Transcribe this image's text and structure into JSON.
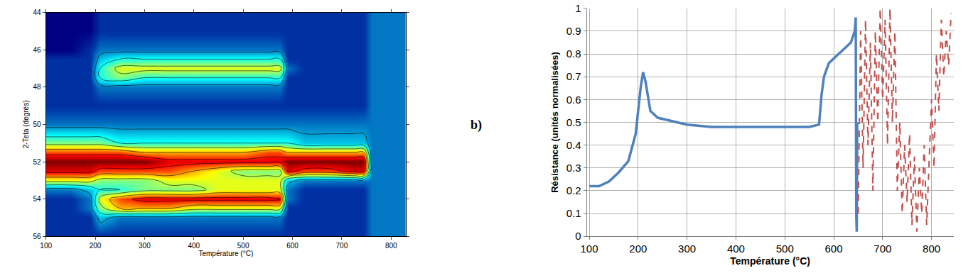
{
  "chart_data": [
    {
      "type": "heatmap",
      "x_label": "Température (°C)",
      "y_label": "2-Teta (degrés)",
      "x": [
        100,
        150,
        190,
        210,
        250,
        300,
        350,
        400,
        450,
        500,
        550,
        575,
        590,
        625,
        675,
        725,
        745,
        760,
        800,
        830
      ],
      "y": [
        44,
        45,
        46,
        46.5,
        47,
        47.5,
        48,
        49,
        50,
        51,
        51.5,
        52,
        52.5,
        53,
        53.5,
        54,
        54.5,
        55,
        56
      ],
      "z": [
        [
          0,
          0,
          0,
          1,
          1,
          1,
          1,
          1,
          1,
          1,
          1,
          1,
          1,
          1,
          1,
          1,
          1,
          2,
          2,
          2
        ],
        [
          0,
          0,
          0,
          1,
          1,
          1,
          1,
          1,
          1,
          1,
          1,
          1,
          1,
          1,
          1,
          1,
          1,
          2,
          2,
          2
        ],
        [
          0,
          0,
          1,
          2,
          2,
          2,
          2,
          2,
          2,
          2,
          2,
          2,
          1,
          1,
          1,
          1,
          1,
          2,
          2,
          2
        ],
        [
          1,
          1,
          1,
          3,
          4,
          4,
          4,
          4,
          4,
          4,
          4,
          4,
          1,
          1,
          1,
          1,
          1,
          2,
          2,
          2
        ],
        [
          1,
          1,
          1,
          4,
          6,
          6,
          6,
          6,
          6,
          6,
          6,
          6,
          2,
          1,
          1,
          1,
          1,
          2,
          2,
          2
        ],
        [
          1,
          1,
          1,
          4,
          5,
          4,
          4,
          4,
          4,
          4,
          4,
          4,
          1,
          1,
          1,
          1,
          1,
          2,
          2,
          2
        ],
        [
          1,
          1,
          1,
          2,
          2,
          2,
          2,
          2,
          2,
          2,
          2,
          2,
          1,
          1,
          1,
          1,
          1,
          2,
          2,
          2
        ],
        [
          1,
          1,
          1,
          1,
          1,
          1,
          1,
          1,
          1,
          1,
          1,
          1,
          1,
          1,
          1,
          1,
          1,
          2,
          2,
          2
        ],
        [
          2,
          2,
          2,
          2,
          2,
          2,
          2,
          2,
          2,
          2,
          2,
          2,
          2,
          2,
          2,
          2,
          2,
          2,
          2,
          2
        ],
        [
          5,
          5,
          5,
          5,
          4,
          4,
          4,
          4,
          4,
          4,
          4,
          4,
          4,
          3,
          3,
          3,
          3,
          2,
          2,
          2
        ],
        [
          8,
          8,
          8,
          8,
          8,
          7,
          7,
          7,
          7,
          7,
          8,
          8,
          7,
          7,
          7,
          7,
          7,
          2,
          2,
          2
        ],
        [
          10,
          10,
          10,
          10,
          10,
          10,
          9,
          9,
          9,
          9,
          9,
          9,
          10,
          10,
          10,
          10,
          10,
          2,
          2,
          2
        ],
        [
          9,
          9,
          9,
          8,
          8,
          8,
          8,
          7,
          6,
          5,
          5,
          5,
          9,
          8,
          8,
          9,
          9,
          2,
          2,
          2
        ],
        [
          6,
          6,
          6,
          5,
          5,
          5,
          6,
          6,
          6,
          6,
          6,
          6,
          3,
          2,
          2,
          2,
          2,
          2,
          2,
          2
        ],
        [
          2,
          2,
          3,
          4,
          4,
          5,
          5,
          5,
          6,
          6,
          6,
          6,
          2,
          1,
          1,
          1,
          1,
          2,
          2,
          2
        ],
        [
          1,
          1,
          2,
          6,
          8,
          9,
          9,
          9,
          9,
          9,
          9,
          9,
          2,
          1,
          1,
          1,
          1,
          2,
          2,
          2
        ],
        [
          1,
          1,
          2,
          5,
          7,
          7,
          7,
          6,
          6,
          6,
          6,
          6,
          1,
          1,
          1,
          1,
          1,
          2,
          2,
          2
        ],
        [
          1,
          1,
          1,
          3,
          2,
          2,
          2,
          2,
          2,
          2,
          2,
          2,
          1,
          1,
          1,
          1,
          1,
          2,
          2,
          2
        ],
        [
          1,
          1,
          1,
          1,
          1,
          1,
          1,
          1,
          1,
          1,
          1,
          1,
          1,
          1,
          1,
          1,
          1,
          2,
          2,
          2
        ]
      ],
      "zlim": [
        0,
        10
      ],
      "xlim": [
        100,
        830
      ],
      "ylim": [
        56,
        44
      ],
      "xticks": [
        100,
        200,
        300,
        400,
        500,
        600,
        700,
        800
      ],
      "yticks": [
        44,
        46,
        48,
        50,
        52,
        54,
        56
      ]
    },
    {
      "type": "line",
      "annotation": "b)",
      "x_label": "Température (°C)",
      "y_label": "Résistance (unités normalisées)",
      "series": [
        {
          "color": "#4f81bd",
          "line_style": "solid",
          "x": [
            100,
            120,
            140,
            160,
            180,
            195,
            205,
            210,
            215,
            225,
            240,
            260,
            300,
            350,
            400,
            450,
            500,
            550,
            570,
            575,
            580,
            590,
            600,
            620,
            635,
            643,
            645,
            646,
            647,
            648
          ],
          "values": [
            0.22,
            0.22,
            0.24,
            0.28,
            0.33,
            0.45,
            0.65,
            0.72,
            0.68,
            0.55,
            0.52,
            0.51,
            0.49,
            0.48,
            0.48,
            0.48,
            0.48,
            0.48,
            0.49,
            0.62,
            0.7,
            0.76,
            0.78,
            0.82,
            0.85,
            0.9,
            0.96,
            0.1,
            0.02,
            0.5
          ]
        },
        {
          "color": "#c0504d",
          "line_style": "dashed",
          "x": [
            650,
            655,
            660,
            665,
            670,
            675,
            680,
            685,
            690,
            695,
            700,
            705,
            710,
            715,
            720,
            725,
            730,
            735,
            740,
            745,
            750,
            755,
            760,
            765,
            770,
            775,
            780,
            785,
            790,
            795,
            800,
            805,
            810,
            815,
            820,
            825,
            830,
            835,
            840
          ],
          "values": [
            0.1,
            0.9,
            0.3,
            0.95,
            0.4,
            0.85,
            0.2,
            0.9,
            0.5,
            1.0,
            0.6,
            0.95,
            0.4,
            1.0,
            0.5,
            0.9,
            0.2,
            0.5,
            0.1,
            0.4,
            0.15,
            0.45,
            0.05,
            0.35,
            0.02,
            0.3,
            0.1,
            0.4,
            0.05,
            0.35,
            0.6,
            0.3,
            0.8,
            0.55,
            0.95,
            0.7,
            0.9,
            0.75,
            0.98
          ]
        }
      ],
      "xlim": [
        95,
        845
      ],
      "ylim": [
        0,
        1
      ],
      "xticks": [
        100,
        200,
        300,
        400,
        500,
        600,
        700,
        800
      ],
      "yticks": [
        0,
        0.1,
        0.2,
        0.3,
        0.4,
        0.5,
        0.6,
        0.7,
        0.8,
        0.9,
        1
      ],
      "grid": true
    }
  ]
}
